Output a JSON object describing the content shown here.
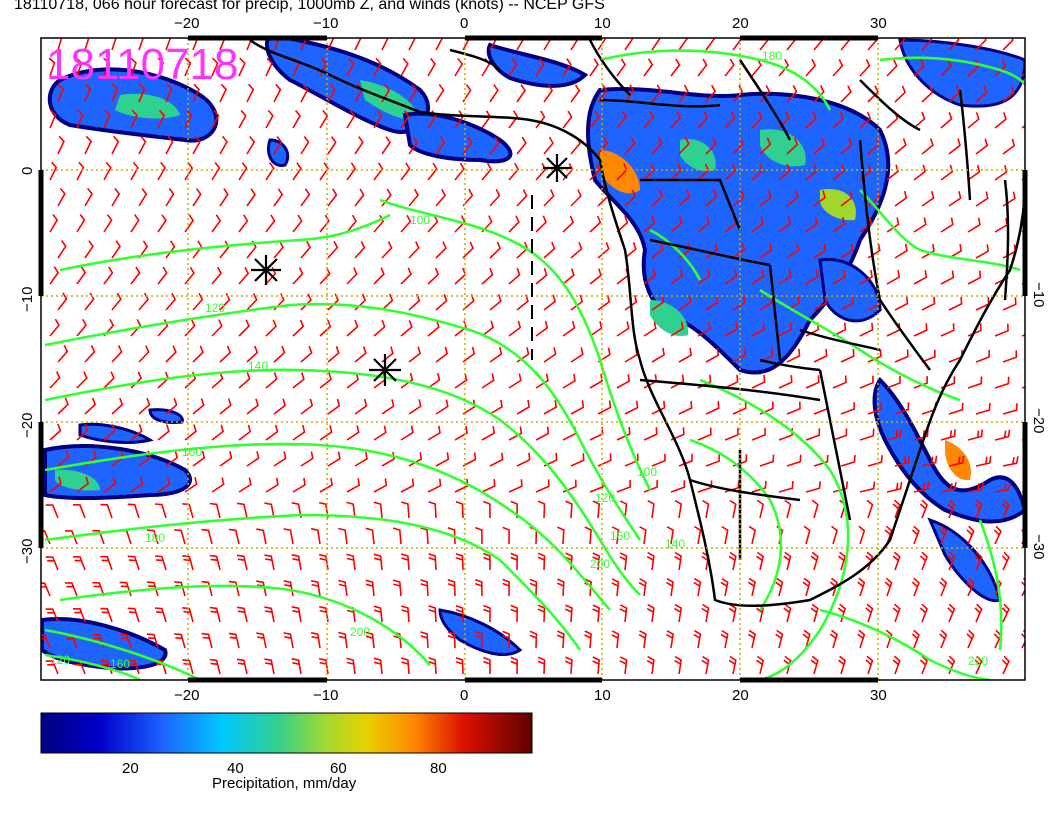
{
  "title": "18110718, 066 hour forecast for precip, 1000mb Z, and winds (knots) -- NCEP GFS",
  "stamp": "18110718",
  "axes": {
    "lon_ticks": [
      "−20",
      "−10",
      "0",
      "10",
      "20",
      "30"
    ],
    "lat_ticks_left": [
      "0",
      "−10",
      "−20",
      "−30"
    ],
    "lat_ticks_right": [
      "−10",
      "−20",
      "−30"
    ],
    "lon_range": [
      -30,
      40
    ],
    "lat_range": [
      -40,
      10
    ]
  },
  "contour_labels": [
    "100",
    "120",
    "140",
    "160",
    "180",
    "200",
    "100",
    "120",
    "140",
    "160",
    "180",
    "200",
    "220",
    "120",
    "160"
  ],
  "colorbar": {
    "title": "Precipitation, mm/day",
    "ticks": [
      "20",
      "40",
      "60",
      "80"
    ],
    "range": [
      0,
      100
    ]
  },
  "colors": {
    "contour": "#33ff33",
    "barbs": "#ff0000",
    "stamp": "#ff33ff",
    "coast": "#000000",
    "grid": "#ccaa00"
  },
  "markers": [
    "storm-symbol",
    "storm-symbol",
    "storm-symbol"
  ]
}
